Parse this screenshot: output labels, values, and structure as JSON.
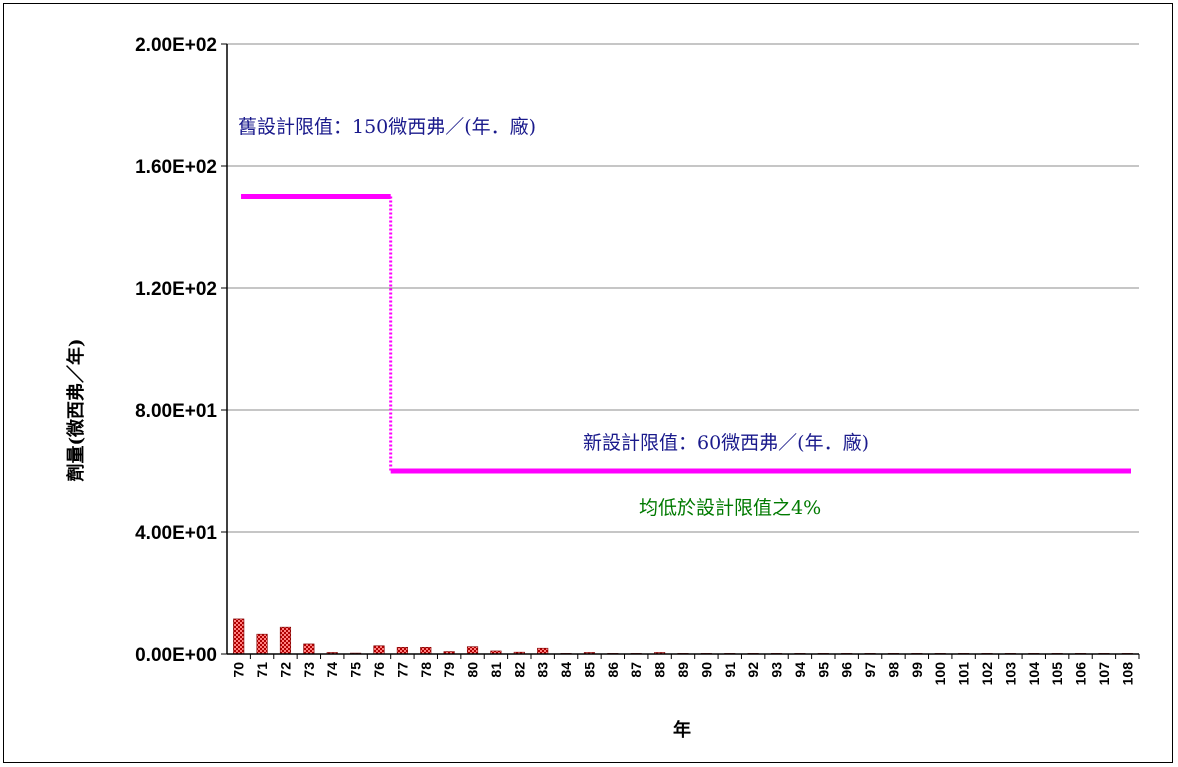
{
  "chart_data": {
    "type": "bar",
    "ylabel": "劑量(微西弗／年)",
    "xlabel": "年",
    "ylim": [
      0,
      200
    ],
    "yticks": [
      "0.00E+00",
      "4.00E+01",
      "8.00E+01",
      "1.20E+02",
      "1.60E+02",
      "2.00E+02"
    ],
    "grid": true,
    "categories": [
      "70",
      "71",
      "72",
      "73",
      "74",
      "75",
      "76",
      "77",
      "78",
      "79",
      "80",
      "81",
      "82",
      "83",
      "84",
      "85",
      "86",
      "87",
      "88",
      "89",
      "90",
      "91",
      "92",
      "93",
      "94",
      "95",
      "96",
      "97",
      "98",
      "99",
      "100",
      "101",
      "102",
      "103",
      "104",
      "105",
      "106",
      "107",
      "108"
    ],
    "values": [
      11.5,
      6.5,
      8.8,
      3.3,
      0.5,
      0.3,
      2.7,
      2.2,
      2.2,
      0.8,
      2.4,
      1.0,
      0.6,
      1.9,
      0.2,
      0.5,
      0.2,
      0.2,
      0.5,
      0.2,
      0.2,
      0.2,
      0.2,
      0.2,
      0.2,
      0.2,
      0.2,
      0.2,
      0.2,
      0.2,
      0.2,
      0.2,
      0.2,
      0.2,
      0.2,
      0.2,
      0.2,
      0.2,
      0.2
    ],
    "bar_color": "#ff6666",
    "limits": [
      {
        "label": "舊設計限值：150微西弗／(年．廠)",
        "value": 150,
        "from": "70",
        "to": "76",
        "color": "#ff00ff"
      },
      {
        "label": "新設計限值：60微西弗／(年．廠)",
        "value": 60,
        "from": "77",
        "to": "108",
        "color": "#ff00ff"
      }
    ],
    "annotations": [
      {
        "text": "均低於設計限值之4%",
        "color": "#007a00"
      }
    ],
    "label_color": "#1a1a8c"
  }
}
